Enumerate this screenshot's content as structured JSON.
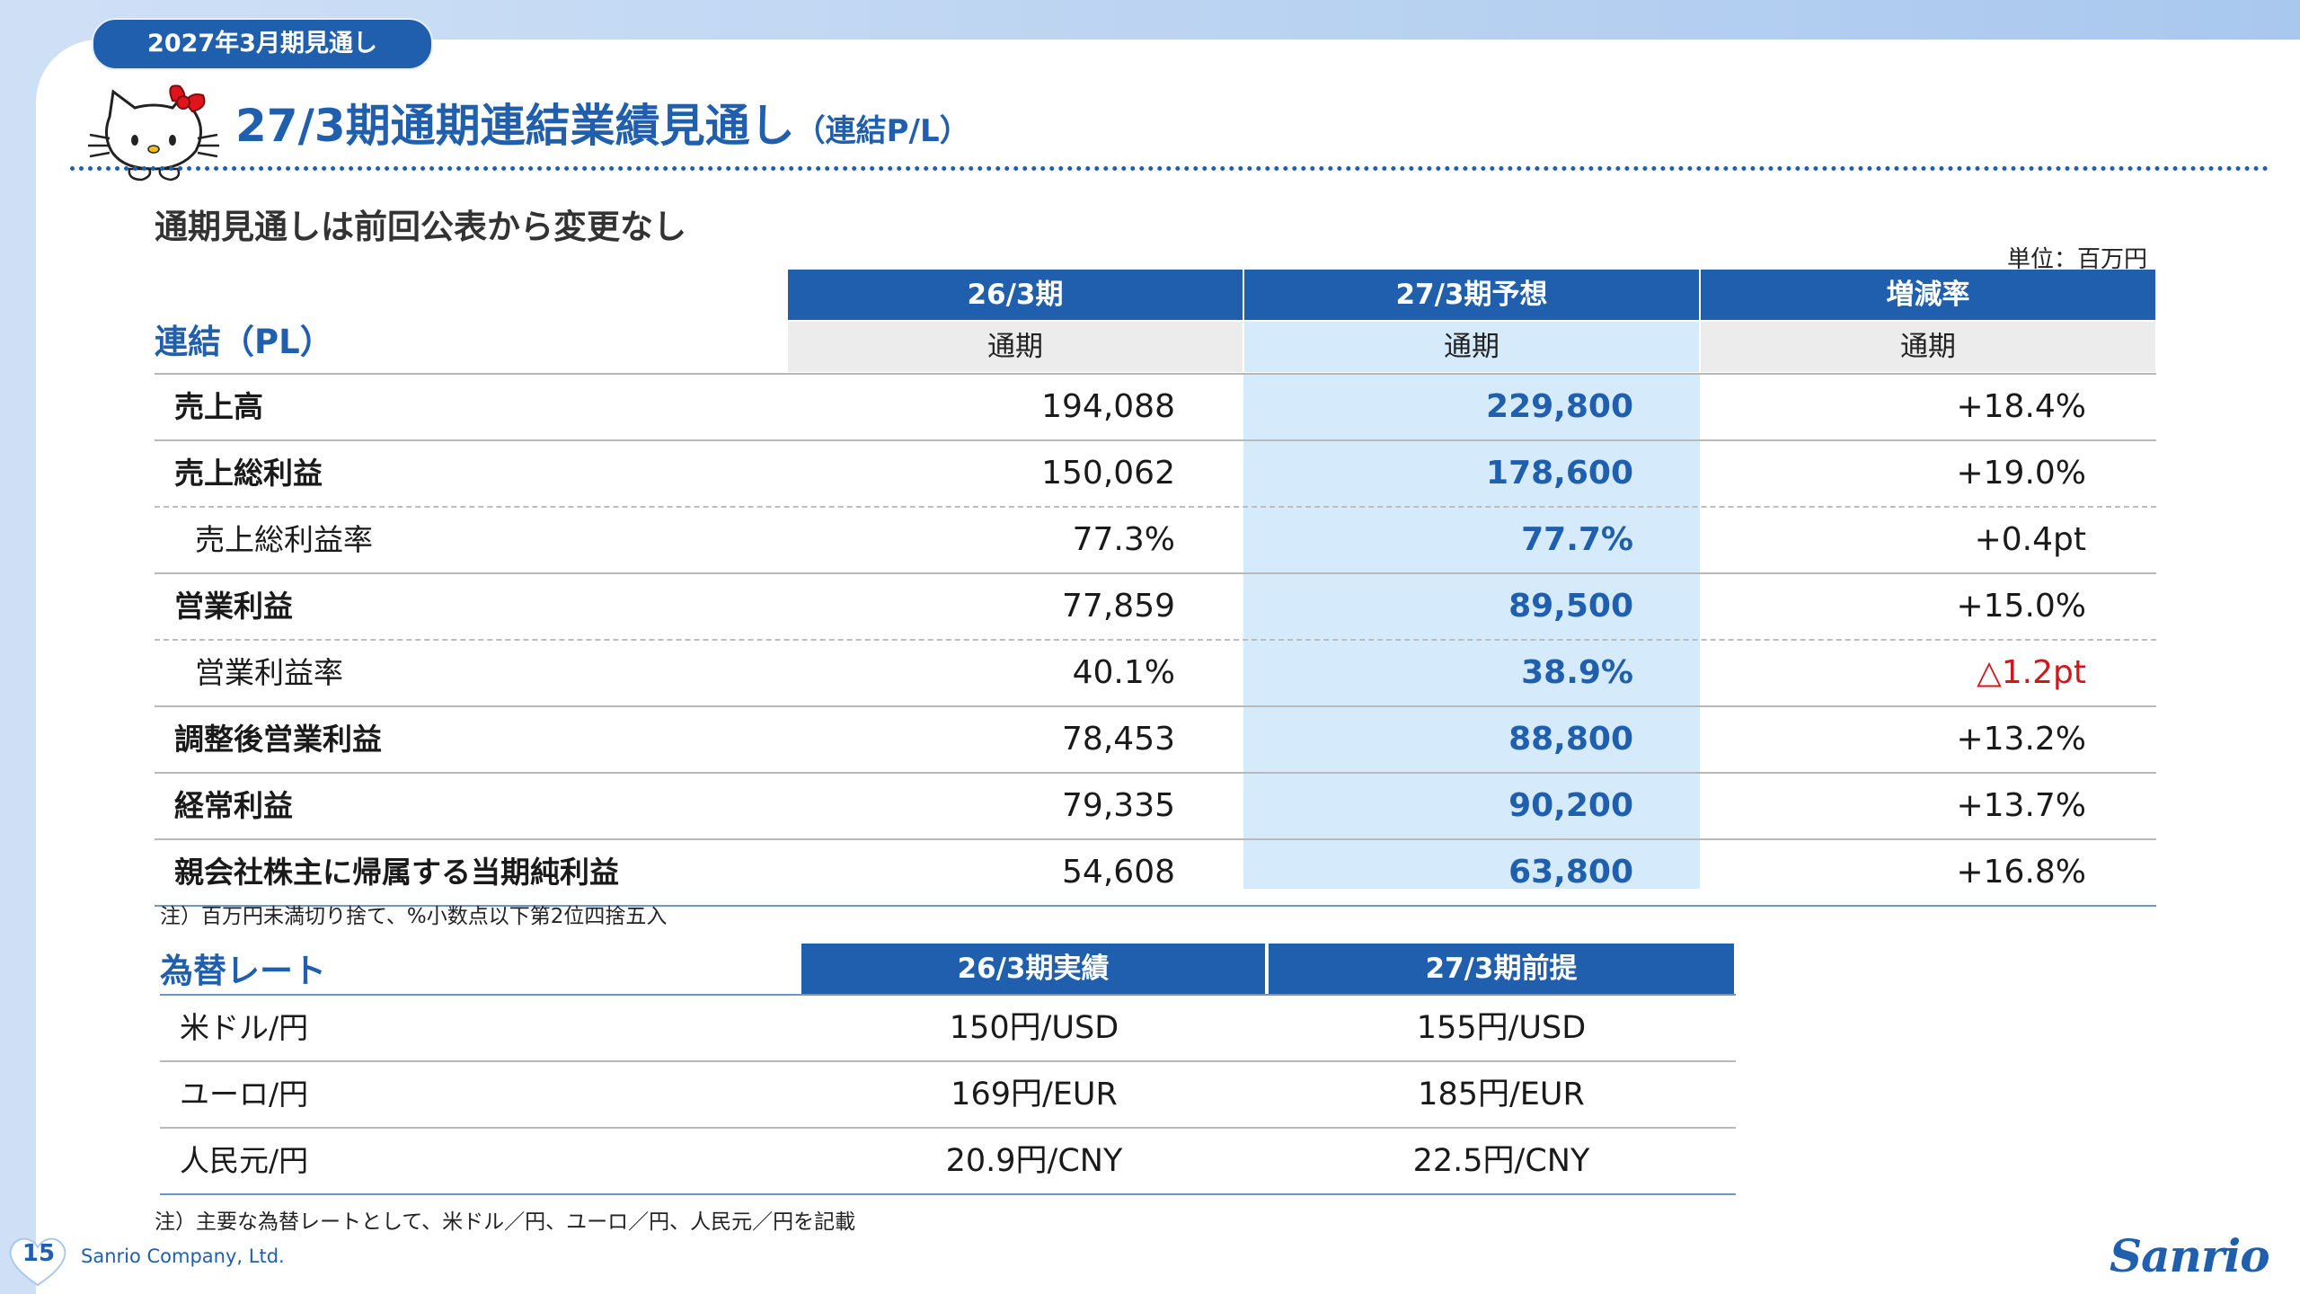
{
  "header": {
    "period_badge": "2027年3月期見通し",
    "title": "27/3期通期連結業績見通し",
    "title_suffix": "（連結P/L）",
    "summary": "通期見通しは前回公表から変更なし",
    "unit": "単位：百万円"
  },
  "pl_table": {
    "caption": "連結（PL）",
    "columns": [
      {
        "label": "26/3期",
        "sub": "通期"
      },
      {
        "label": "27/3期予想",
        "sub": "通期"
      },
      {
        "label": "増減率",
        "sub": "通期"
      }
    ],
    "rows": [
      {
        "label": "売上高",
        "v1": "194,088",
        "v2": "229,800",
        "v3": "+18.4%"
      },
      {
        "label": "売上総利益",
        "v1": "150,062",
        "v2": "178,600",
        "v3": "+19.0%"
      },
      {
        "label": "売上総利益率",
        "v1": "77.3%",
        "v2": "77.7%",
        "v3": "+0.4pt"
      },
      {
        "label": "営業利益",
        "v1": "77,859",
        "v2": "89,500",
        "v3": "+15.0%"
      },
      {
        "label": "営業利益率",
        "v1": "40.1%",
        "v2": "38.9%",
        "v3": "△1.2pt"
      },
      {
        "label": "調整後営業利益",
        "v1": "78,453",
        "v2": "88,800",
        "v3": "+13.2%"
      },
      {
        "label": "経常利益",
        "v1": "79,335",
        "v2": "90,200",
        "v3": "+13.7%"
      },
      {
        "label": "親会社株主に帰属する当期純利益",
        "v1": "54,608",
        "v2": "63,800",
        "v3": "+16.8%"
      }
    ],
    "note": "注）百万円未満切り捨て、%小数点以下第2位四捨五入"
  },
  "fx_table": {
    "caption": "為替レート",
    "columns": [
      "26/3期実績",
      "27/3期前提"
    ],
    "rows": [
      {
        "label": "米ドル/円",
        "v1": "150円/USD",
        "v2": "155円/USD"
      },
      {
        "label": "ユーロ/円",
        "v1": "169円/EUR",
        "v2": "185円/EUR"
      },
      {
        "label": "人民元/円",
        "v1": "20.9円/CNY",
        "v2": "22.5円/CNY"
      }
    ],
    "note": "注）主要な為替レートとして、米ドル／円、ユーロ／円、人民元／円を記載"
  },
  "footer": {
    "page_number": "15",
    "company": "Sanrio Company, Ltd.",
    "logo_text": "Sanrio"
  },
  "colors": {
    "brand_blue": "#1f5fad",
    "forecast_fill": "#d5ebfb",
    "negative_red": "#d0171b"
  },
  "icons": [
    "hello-kitty-illustration",
    "heart-icon",
    "sanrio-logo"
  ]
}
